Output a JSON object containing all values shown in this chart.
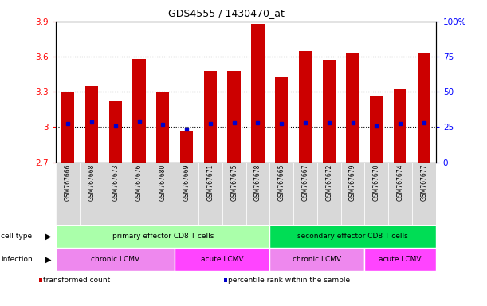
{
  "title": "GDS4555 / 1430470_at",
  "samples": [
    "GSM767666",
    "GSM767668",
    "GSM767673",
    "GSM767676",
    "GSM767680",
    "GSM767669",
    "GSM767671",
    "GSM767675",
    "GSM767678",
    "GSM767665",
    "GSM767667",
    "GSM767672",
    "GSM767679",
    "GSM767670",
    "GSM767674",
    "GSM767677"
  ],
  "bar_values": [
    3.3,
    3.35,
    3.22,
    3.58,
    3.3,
    2.97,
    3.48,
    3.48,
    3.88,
    3.43,
    3.65,
    3.57,
    3.63,
    3.27,
    3.32,
    3.63
  ],
  "percentile_values": [
    3.03,
    3.04,
    3.01,
    3.05,
    3.02,
    2.985,
    3.03,
    3.035,
    3.035,
    3.03,
    3.035,
    3.035,
    3.035,
    3.01,
    3.03,
    3.035
  ],
  "ylim_left": [
    2.7,
    3.9
  ],
  "ylim_right": [
    0,
    100
  ],
  "yticks_left": [
    2.7,
    3.0,
    3.3,
    3.6,
    3.9
  ],
  "yticks_left_labels": [
    "2.7",
    "3",
    "3.3",
    "3.6",
    "3.9"
  ],
  "yticks_right": [
    0,
    25,
    50,
    75,
    100
  ],
  "yticks_right_labels": [
    "0",
    "25",
    "50",
    "75",
    "100%"
  ],
  "bar_color": "#cc0000",
  "percentile_color": "#0000cc",
  "background_color": "#ffffff",
  "cell_type_groups": [
    {
      "label": "primary effector CD8 T cells",
      "start": 0,
      "end": 9,
      "color": "#aaffaa"
    },
    {
      "label": "secondary effector CD8 T cells",
      "start": 9,
      "end": 16,
      "color": "#00dd55"
    }
  ],
  "infection_groups": [
    {
      "label": "chronic LCMV",
      "start": 0,
      "end": 5,
      "color": "#ee88ee"
    },
    {
      "label": "acute LCMV",
      "start": 5,
      "end": 9,
      "color": "#ff44ff"
    },
    {
      "label": "chronic LCMV",
      "start": 9,
      "end": 13,
      "color": "#ee88ee"
    },
    {
      "label": "acute LCMV",
      "start": 13,
      "end": 16,
      "color": "#ff44ff"
    }
  ],
  "legend_items": [
    {
      "label": "transformed count",
      "color": "#cc0000"
    },
    {
      "label": "percentile rank within the sample",
      "color": "#0000cc"
    }
  ],
  "gridlines_at": [
    3.0,
    3.3,
    3.6
  ]
}
